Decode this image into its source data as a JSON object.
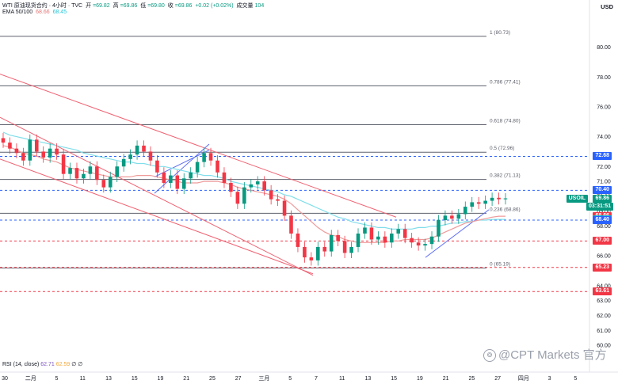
{
  "header": {
    "symbol": "WTI 原油现货合约 · 4小时 · TVC",
    "ohlc": [
      {
        "label": "开",
        "value": "=69.82"
      },
      {
        "label": "高",
        "value": "=69.86"
      },
      {
        "label": "低",
        "value": "=69.80"
      },
      {
        "label": "收",
        "value": "=69.86"
      },
      {
        "label": "",
        "value": "+0.02 (+0.02%)"
      },
      {
        "label": "成交量",
        "value": "104"
      }
    ],
    "ema_label": "EMA 50/100",
    "ema_val1": "68.66",
    "ema_val2": "68.45"
  },
  "currency": "USD",
  "rsi": {
    "label": "RSI (14, close)",
    "v1": "62.71",
    "v2": "62.59",
    "o1": "∅",
    "o2": "∅"
  },
  "watermark": {
    "text": "@CPT Markets 官方"
  },
  "colors": {
    "up": "#089981",
    "down": "#f23645",
    "ema50": "#ef9a9a",
    "ema100": "#80deea",
    "channel": "#f06272",
    "trend": "#5b6cf5",
    "fib": "#5d606b",
    "dash_red": "#f23645",
    "dash_blue": "#2962ff"
  },
  "chart_data": {
    "type": "candlestick",
    "ylim": [
      59.0,
      82.0
    ],
    "y_ticks": [
      "80.00",
      "78.00",
      "76.00",
      "74.00",
      "72.00",
      "71.00",
      "70.00",
      "69.00",
      "68.00",
      "66.00",
      "64.00",
      "63.00",
      "62.00",
      "61.00",
      "60.00"
    ],
    "x_ticks": [
      "30",
      "二月",
      "5",
      "11",
      "13",
      "15",
      "19",
      "21",
      "25",
      "27",
      "三月",
      "5",
      "7",
      "11",
      "13",
      "15",
      "19",
      "21",
      "25",
      "27",
      "四月",
      "3",
      "5"
    ],
    "x_tick_positions": [
      0,
      1,
      2,
      3,
      4,
      5,
      6,
      7,
      8,
      9,
      10,
      11,
      12,
      13,
      14,
      15,
      16,
      17,
      18,
      19,
      20,
      21,
      22
    ],
    "fib_levels": [
      {
        "label": "1 (80.73)",
        "value": 80.73
      },
      {
        "label": "0.786 (77.41)",
        "value": 77.41
      },
      {
        "label": "0.618 (74.80)",
        "value": 74.8
      },
      {
        "label": "0.5 (72.96)",
        "value": 72.96
      },
      {
        "label": "0.382 (71.13)",
        "value": 71.13
      },
      {
        "label": "0.236 (68.86)",
        "value": 68.86
      },
      {
        "label": "0 (65.19)",
        "value": 65.19
      }
    ],
    "dashed_levels": [
      {
        "value": 72.68,
        "color": "blue"
      },
      {
        "value": 70.4,
        "color": "blue"
      },
      {
        "value": 68.4,
        "color": "blue"
      },
      {
        "value": 67.0,
        "color": "red"
      },
      {
        "value": 65.23,
        "color": "red"
      },
      {
        "value": 63.61,
        "color": "red"
      }
    ],
    "price_tags": [
      {
        "text": "72.68",
        "value": 72.68,
        "bg": "#2962ff"
      },
      {
        "text": "70.40",
        "value": 70.4,
        "bg": "#2962ff"
      },
      {
        "text": "USOIL",
        "value": 69.86,
        "bg": "#089981"
      },
      {
        "text": "69.86",
        "value": 69.86,
        "bg": "#089981"
      },
      {
        "text": "03:31:51",
        "value": 69.3,
        "bg": "#089981"
      },
      {
        "text": "68.66",
        "value": 68.66,
        "bg": "#f23645"
      },
      {
        "text": "68.45",
        "value": 68.45,
        "bg": "#00bcd4"
      },
      {
        "text": "68.40",
        "value": 68.4,
        "bg": "#2962ff"
      },
      {
        "text": "67.00",
        "value": 67.0,
        "bg": "#f23645"
      },
      {
        "text": "65.23",
        "value": 65.23,
        "bg": "#f23645"
      },
      {
        "text": "63.61",
        "value": 63.61,
        "bg": "#f23645"
      }
    ],
    "close_series": [
      73.6,
      73.2,
      72.9,
      72.4,
      73.8,
      73.0,
      72.6,
      73.2,
      72.8,
      71.5,
      71.9,
      71.2,
      71.5,
      72.0,
      71.1,
      70.6,
      71.3,
      72.0,
      72.5,
      72.8,
      73.4,
      73.0,
      72.4,
      71.6,
      70.9,
      71.4,
      70.5,
      71.2,
      71.6,
      72.3,
      72.9,
      72.4,
      71.6,
      70.9,
      70.3,
      69.5,
      70.6,
      70.8,
      71.0,
      70.4,
      69.8,
      69.7,
      68.7,
      67.5,
      66.6,
      65.9,
      65.7,
      66.6,
      66.3,
      67.4,
      67.0,
      66.2,
      66.6,
      67.5,
      67.9,
      67.1,
      67.3,
      66.9,
      67.5,
      67.8,
      67.2,
      66.9,
      66.7,
      66.8,
      67.3,
      68.4,
      68.7,
      68.5,
      68.8,
      69.3,
      69.6,
      69.5,
      69.7,
      69.9,
      69.8,
      69.86
    ],
    "ema50": [
      73.4,
      73.3,
      73.1,
      72.9,
      72.8,
      72.7,
      72.5,
      72.4,
      72.3,
      72.1,
      71.9,
      71.8,
      71.7,
      71.6,
      71.5,
      71.4,
      71.3,
      71.3,
      71.3,
      71.3,
      71.4,
      71.4,
      71.4,
      71.3,
      71.2,
      71.1,
      71.0,
      70.9,
      70.9,
      70.9,
      71.0,
      71.0,
      71.0,
      70.9,
      70.8,
      70.6,
      70.5,
      70.4,
      70.3,
      70.2,
      70.1,
      70.0,
      69.8,
      69.5,
      69.1,
      68.7,
      68.3,
      67.9,
      67.6,
      67.4,
      67.3,
      67.1,
      67.0,
      66.9,
      66.9,
      66.9,
      66.9,
      66.9,
      67.0,
      67.0,
      67.1,
      67.1,
      67.1,
      67.1,
      67.2,
      67.4,
      67.6,
      67.8,
      68.0,
      68.2,
      68.3,
      68.4,
      68.5,
      68.6,
      68.66,
      68.66
    ],
    "ema100": [
      74.3,
      74.1,
      74.0,
      73.9,
      73.8,
      73.7,
      73.6,
      73.5,
      73.4,
      73.3,
      73.2,
      73.1,
      72.9,
      72.8,
      72.7,
      72.6,
      72.5,
      72.4,
      72.3,
      72.3,
      72.2,
      72.2,
      72.1,
      72.0,
      72.0,
      71.9,
      71.8,
      71.7,
      71.6,
      71.5,
      71.4,
      71.4,
      71.3,
      71.2,
      71.0,
      70.9,
      70.8,
      70.7,
      70.6,
      70.5,
      70.4,
      70.3,
      70.1,
      70.0,
      69.8,
      69.6,
      69.4,
      69.2,
      69.0,
      68.8,
      68.6,
      68.5,
      68.3,
      68.2,
      68.1,
      68.0,
      67.9,
      67.9,
      67.8,
      67.8,
      67.8,
      67.8,
      67.9,
      67.9,
      68.0,
      68.0,
      68.1,
      68.2,
      68.2,
      68.3,
      68.3,
      68.4,
      68.4,
      68.45,
      68.45,
      68.45
    ]
  }
}
